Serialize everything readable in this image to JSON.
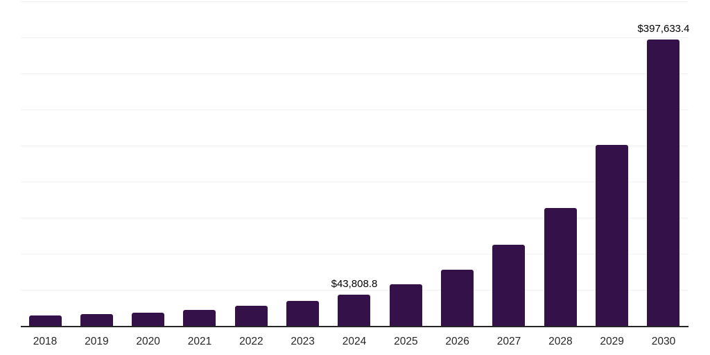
{
  "chart_data": {
    "type": "bar",
    "title": "",
    "xlabel": "",
    "ylabel": "",
    "categories": [
      "2018",
      "2019",
      "2020",
      "2021",
      "2022",
      "2023",
      "2024",
      "2025",
      "2026",
      "2027",
      "2028",
      "2029",
      "2030"
    ],
    "values": [
      15400,
      17400,
      19100,
      23200,
      28700,
      35300,
      43808.8,
      58200,
      79200,
      113500,
      164000,
      251800,
      397633.4
    ],
    "value_labels": [
      "",
      "",
      "",
      "",
      "",
      "",
      "$43,808.8",
      "",
      "",
      "",
      "",
      "",
      "$397,633.4"
    ],
    "ylim": [
      0,
      450000
    ],
    "gridline_values": [
      50000,
      100000,
      150000,
      200000,
      250000,
      300000,
      350000,
      400000,
      450000
    ],
    "grid": true,
    "legend": false,
    "y_tick_labels_visible": false
  },
  "colors": {
    "bar_fill": "#35114A",
    "gridline": "#F2F2F2",
    "axis_line": "#262626",
    "data_label_text": "#000000",
    "tick_label_text": "#262626",
    "background": "#FFFFFF"
  }
}
